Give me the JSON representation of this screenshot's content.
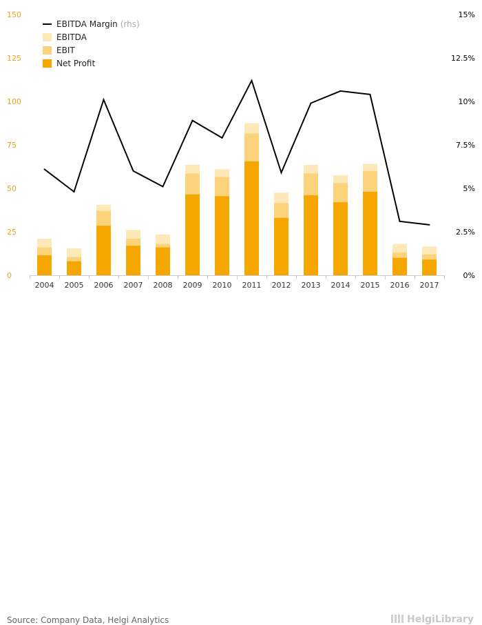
{
  "chart_data": {
    "type": "bar",
    "categories": [
      "2004",
      "2005",
      "2006",
      "2007",
      "2008",
      "2009",
      "2010",
      "2011",
      "2012",
      "2013",
      "2014",
      "2015",
      "2016",
      "2017"
    ],
    "series": [
      {
        "name": "Net Profit",
        "values": [
          11.5,
          8,
          28.5,
          17,
          16,
          46.5,
          45.5,
          65.5,
          33,
          46,
          42,
          48,
          10,
          9
        ],
        "color": "#f5a700"
      },
      {
        "name": "EBIT",
        "values": [
          16,
          10.5,
          37,
          21,
          18,
          58.5,
          56.5,
          81.5,
          41.5,
          58.5,
          53,
          60,
          13,
          12
        ],
        "color": "#fcd27a"
      },
      {
        "name": "EBITDA",
        "values": [
          21,
          15.5,
          40.5,
          26,
          23.5,
          63.5,
          61,
          87.5,
          47.5,
          63.5,
          57.5,
          64,
          18,
          16.5
        ],
        "color": "#fde8b8"
      },
      {
        "name": "EBITDA Margin",
        "axis": "rhs",
        "type": "line",
        "values": [
          6.1,
          4.8,
          10.1,
          6.0,
          5.1,
          8.9,
          7.9,
          11.2,
          5.9,
          9.9,
          10.6,
          10.4,
          3.1,
          2.9
        ],
        "color": "#000000"
      }
    ],
    "ylim_left": [
      0,
      150
    ],
    "yticks_left": [
      "0",
      "25",
      "50",
      "75",
      "100",
      "125",
      "150"
    ],
    "ylim_right": [
      0,
      15
    ],
    "yticks_right": [
      "0%",
      "2.5%",
      "5%",
      "7.5%",
      "10%",
      "12.5%",
      "15%"
    ],
    "legend": [
      {
        "label": "EBITDA Margin",
        "suffix": "(rhs)",
        "kind": "line",
        "color": "#000000"
      },
      {
        "label": "EBITDA",
        "kind": "box",
        "color": "#fde8b8"
      },
      {
        "label": "EBIT",
        "kind": "box",
        "color": "#fcd27a"
      },
      {
        "label": "Net Profit",
        "kind": "box",
        "color": "#f5a700"
      }
    ],
    "legend_position": "top-left",
    "left_tick_color": "#e8a317",
    "grid": false
  },
  "footer": {
    "source": "Source: Company Data, Helgi Analytics",
    "logo": "HelgiLibrary"
  }
}
